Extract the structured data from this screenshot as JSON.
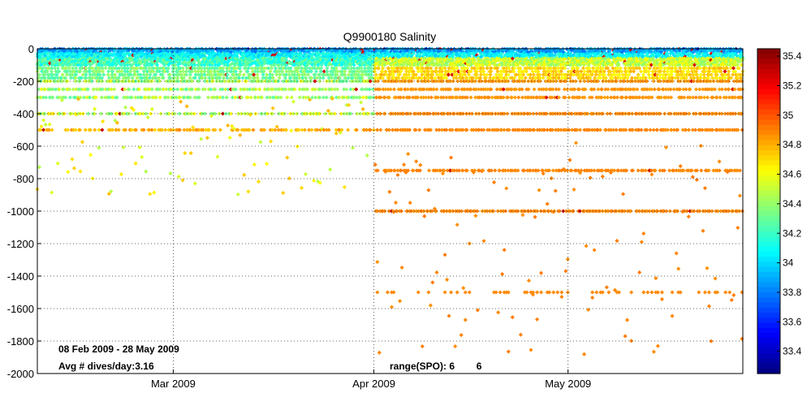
{
  "chart_data": {
    "type": "scatter",
    "title": "Q9900180 Salinity",
    "xlabel": "",
    "ylabel": "",
    "x_range": [
      "2009-02-08",
      "2009-05-28"
    ],
    "ylim": [
      -2000,
      0
    ],
    "y_ticks": [
      0,
      -200,
      -400,
      -600,
      -800,
      -1000,
      -1200,
      -1400,
      -1600,
      -1800,
      -2000
    ],
    "x_ticks": [
      {
        "date": "2009-03-01",
        "label": "Mar 2009"
      },
      {
        "date": "2009-04-01",
        "label": "Apr 2009"
      },
      {
        "date": "2009-05-01",
        "label": "May 2009"
      }
    ],
    "grid": true,
    "colorbar": {
      "range": [
        33.25,
        35.45
      ],
      "ticks": [
        "35.4",
        "35.2",
        "35",
        "34.8",
        "34.6",
        "34.4",
        "34.2",
        "34",
        "33.8",
        "33.6",
        "33.4"
      ],
      "colormap": "jet"
    },
    "annotations": {
      "date_range": "08 Feb 2009 - 28 May 2009",
      "avg_dives": "Avg # dives/day:3.16",
      "range_spo": "range(SPO): 6        6"
    },
    "series": [
      {
        "depth_levels": [
          {
            "depth": -10,
            "salinity": 33.8
          },
          {
            "depth": -50,
            "salinity": 34.0
          },
          {
            "depth": -100,
            "salinity": 34.2
          },
          {
            "depth": -150,
            "salinity": 34.35
          },
          {
            "depth": -200,
            "salinity": 34.7
          },
          {
            "depth": -300,
            "salinity": 34.85
          },
          {
            "depth": -400,
            "salinity": 34.88
          },
          {
            "depth": -500,
            "salinity": 34.88
          },
          {
            "depth": -750,
            "salinity": 34.9
          },
          {
            "depth": -1000,
            "salinity": 34.9
          },
          {
            "depth": -1500,
            "salinity": 34.9
          }
        ],
        "note": "dense profile samples at standard depths, Feb 2009 - May 2009"
      }
    ]
  }
}
